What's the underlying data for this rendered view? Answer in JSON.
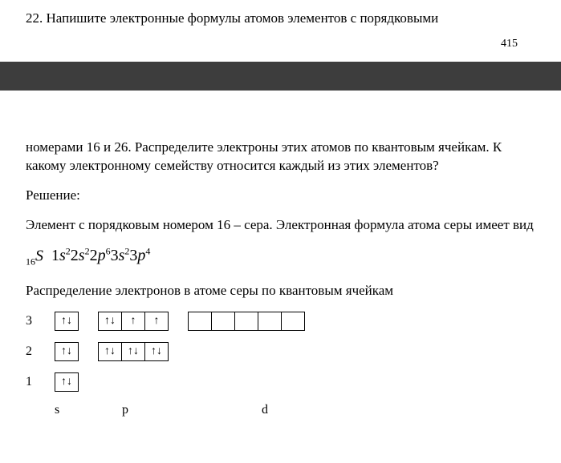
{
  "header": {
    "question_line1": "22. Напишите электронные формулы атомов элементов с порядковыми",
    "page_number": "415"
  },
  "body": {
    "question_cont": "номерами 16 и 26. Распределите электроны этих атомов по квантовым ячейкам. К какому электронному семейству относится каждый из этих элементов?",
    "solution_label": "Решение:",
    "p1": "Элемент с порядковым номером 16 – сера. Электронная формула атома серы имеет вид",
    "formula": {
      "pre_sub": "16",
      "symbol": "S",
      "terms": [
        {
          "n": "1",
          "l": "s",
          "e": "2"
        },
        {
          "n": "2",
          "l": "s",
          "e": "2"
        },
        {
          "n": "2",
          "l": "p",
          "e": "6"
        },
        {
          "n": "3",
          "l": "s",
          "e": "2"
        },
        {
          "n": "3",
          "l": "p",
          "e": "4"
        }
      ]
    },
    "p2": "Распределение электронов в атоме серы по квантовым ячейкам"
  },
  "diagram": {
    "arrow_up": "↑",
    "arrow_updown": "↑↓",
    "empty": "",
    "levels": [
      {
        "n": "3",
        "groups": [
          {
            "cells": [
              "↑↓"
            ]
          },
          {
            "cells": [
              "↑↓",
              "↑",
              "↑"
            ]
          },
          {
            "cells": [
              "",
              "",
              "",
              "",
              ""
            ]
          }
        ]
      },
      {
        "n": "2",
        "groups": [
          {
            "cells": [
              "↑↓"
            ]
          },
          {
            "cells": [
              "↑↓",
              "↑↓",
              "↑↓"
            ]
          }
        ]
      },
      {
        "n": "1",
        "groups": [
          {
            "cells": [
              "↑↓"
            ]
          }
        ]
      }
    ],
    "sublevel_labels": {
      "s": "s",
      "p": "p",
      "d": "d"
    }
  }
}
